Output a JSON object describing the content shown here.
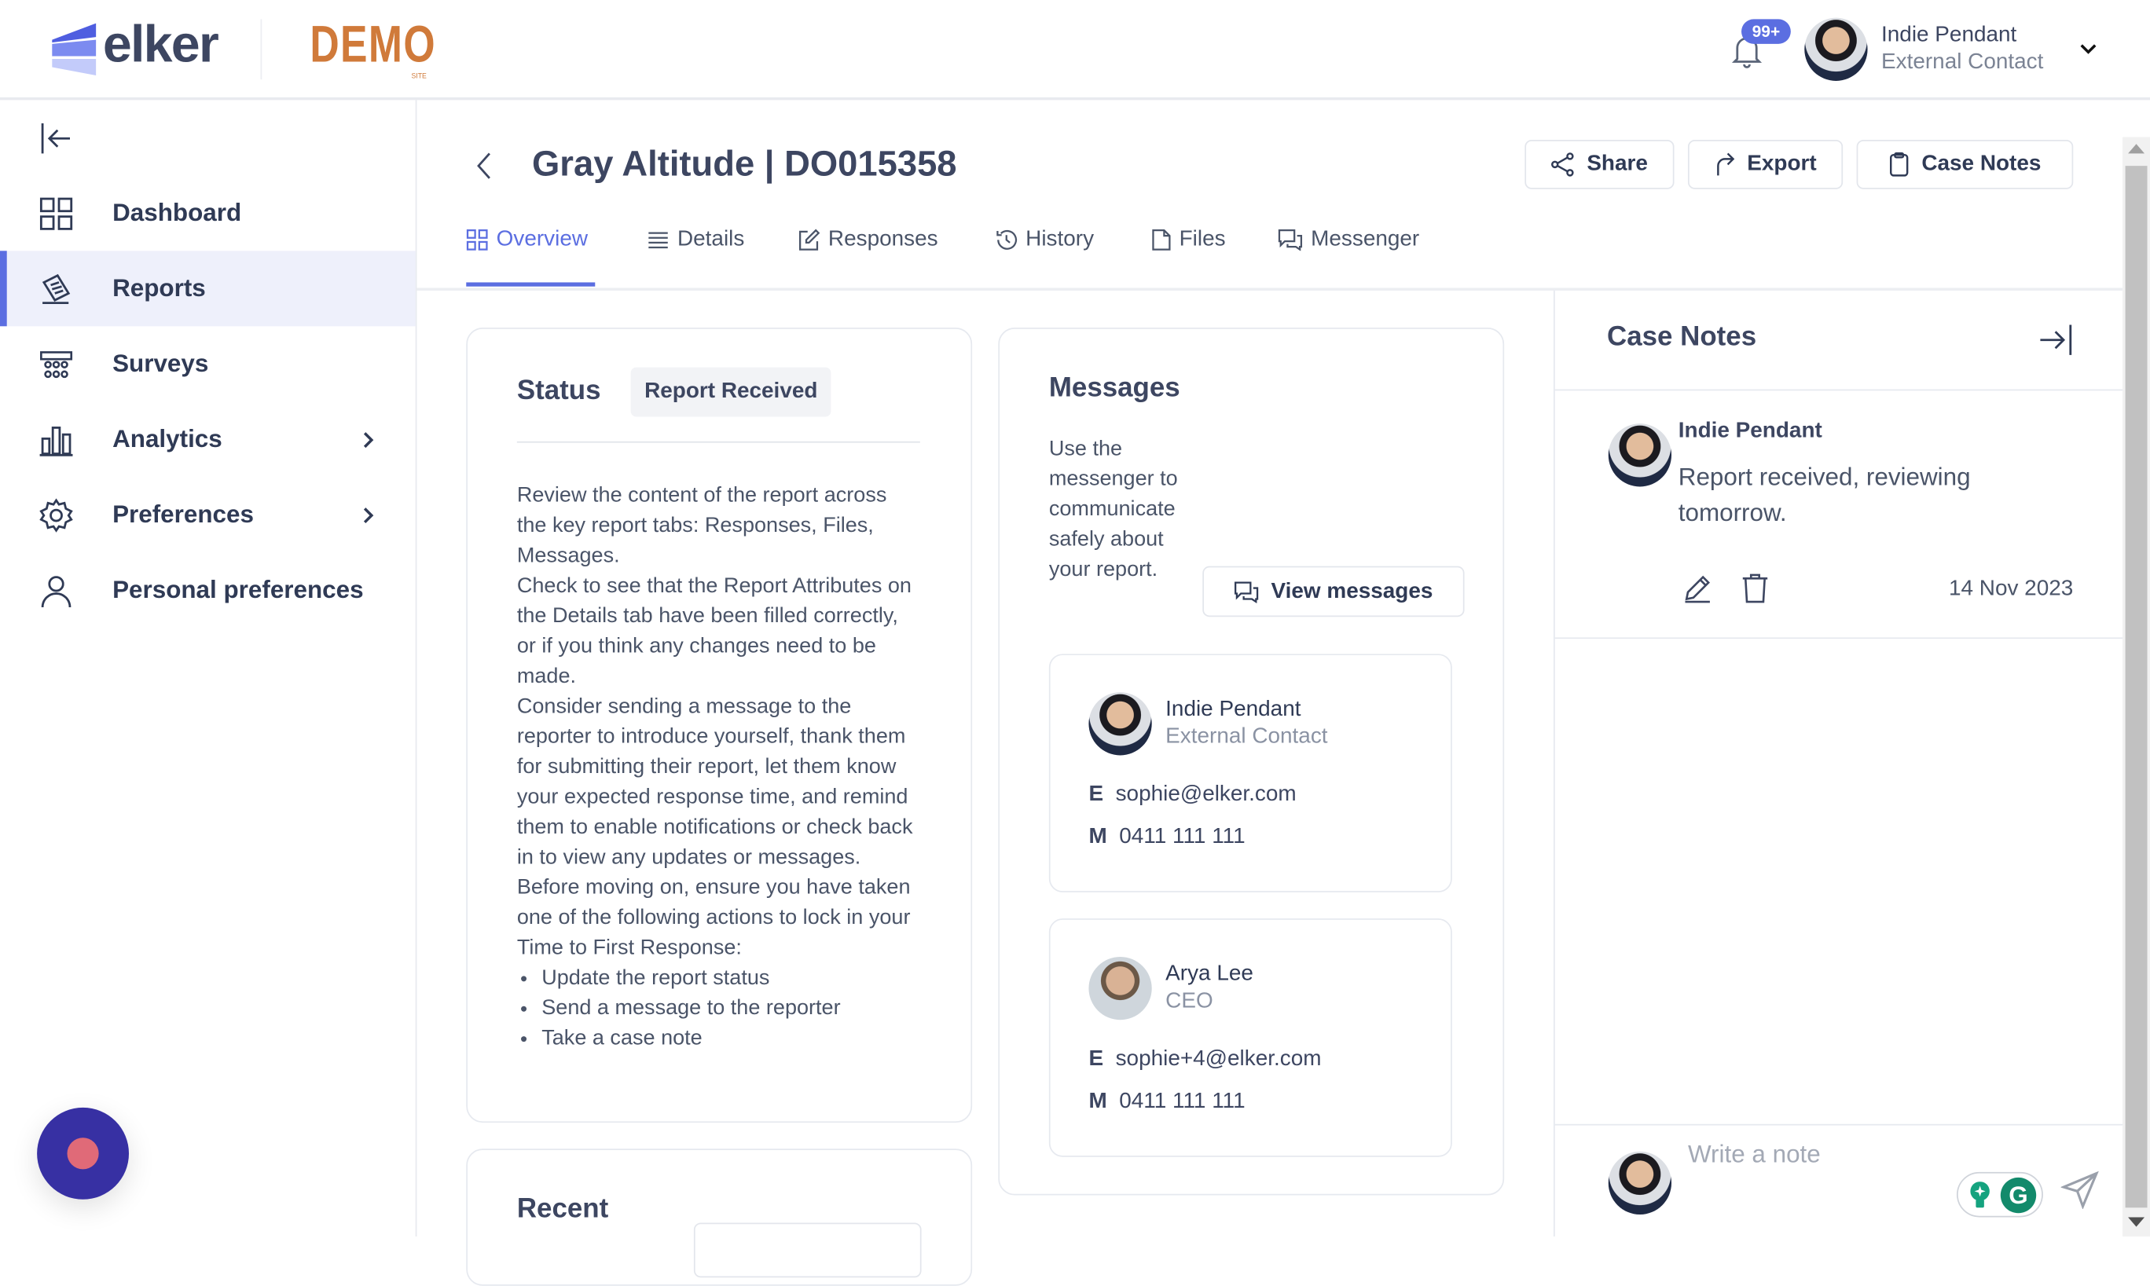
{
  "header": {
    "logo_text": "elker",
    "demo_text": "DEMO",
    "demo_sub": "SITE",
    "notification_count": "99+",
    "user_name": "Indie Pendant",
    "user_role": "External Contact"
  },
  "sidebar": {
    "items": [
      {
        "label": "Dashboard",
        "icon": "grid-icon"
      },
      {
        "label": "Reports",
        "icon": "report-icon",
        "active": true
      },
      {
        "label": "Surveys",
        "icon": "survey-icon"
      },
      {
        "label": "Analytics",
        "icon": "bar-chart-icon",
        "has_children": true
      },
      {
        "label": "Preferences",
        "icon": "gear-icon",
        "has_children": true
      },
      {
        "label": "Personal preferences",
        "icon": "user-icon"
      }
    ]
  },
  "page": {
    "title": "Gray Altitude | DO015358",
    "actions": {
      "share": "Share",
      "export": "Export",
      "case_notes": "Case Notes"
    },
    "tabs": [
      {
        "label": "Overview",
        "active": true
      },
      {
        "label": "Details"
      },
      {
        "label": "Responses"
      },
      {
        "label": "History"
      },
      {
        "label": "Files"
      },
      {
        "label": "Messenger"
      }
    ]
  },
  "status_card": {
    "title": "Status",
    "badge": "Report Received",
    "paragraphs": [
      "Review the content of the report across the key report tabs: Responses, Files, Messages.",
      "Check to see that the Report Attributes on the Details tab have been filled correctly, or if you think any changes need to be made.",
      "Consider sending a message to the reporter to introduce yourself, thank them for submitting their report, let them know your expected response time, and remind them to enable notifications or check back in to view any updates or messages.",
      "Before moving on, ensure you have taken one of the following actions to lock in your Time to First Response:"
    ],
    "bullets": [
      "Update the report status",
      "Send a message to the reporter",
      "Take a case note"
    ]
  },
  "recent_card": {
    "title": "Recent"
  },
  "messages_card": {
    "title": "Messages",
    "description": "Use the messenger to communicate safely about your report.",
    "view_button": "View messages",
    "contacts": [
      {
        "name": "Indie Pendant",
        "role": "External Contact",
        "email_label": "E",
        "email": "sophie@elker.com",
        "mobile_label": "M",
        "mobile": "0411 111 111"
      },
      {
        "name": "Arya Lee",
        "role": "CEO",
        "email_label": "E",
        "email": "sophie+4@elker.com",
        "mobile_label": "M",
        "mobile": "0411 111 111"
      }
    ]
  },
  "case_notes": {
    "title": "Case Notes",
    "notes": [
      {
        "author": "Indie Pendant",
        "text": "Report received, reviewing tomorrow.",
        "date": "14 Nov 2023"
      }
    ],
    "composer_placeholder": "Write a note"
  },
  "colors": {
    "accent": "#5b6ee1",
    "demo": "#d07a3a",
    "fab": "#3730a3",
    "fab_dot": "#e06a78",
    "grammarly": "#15a37f"
  }
}
